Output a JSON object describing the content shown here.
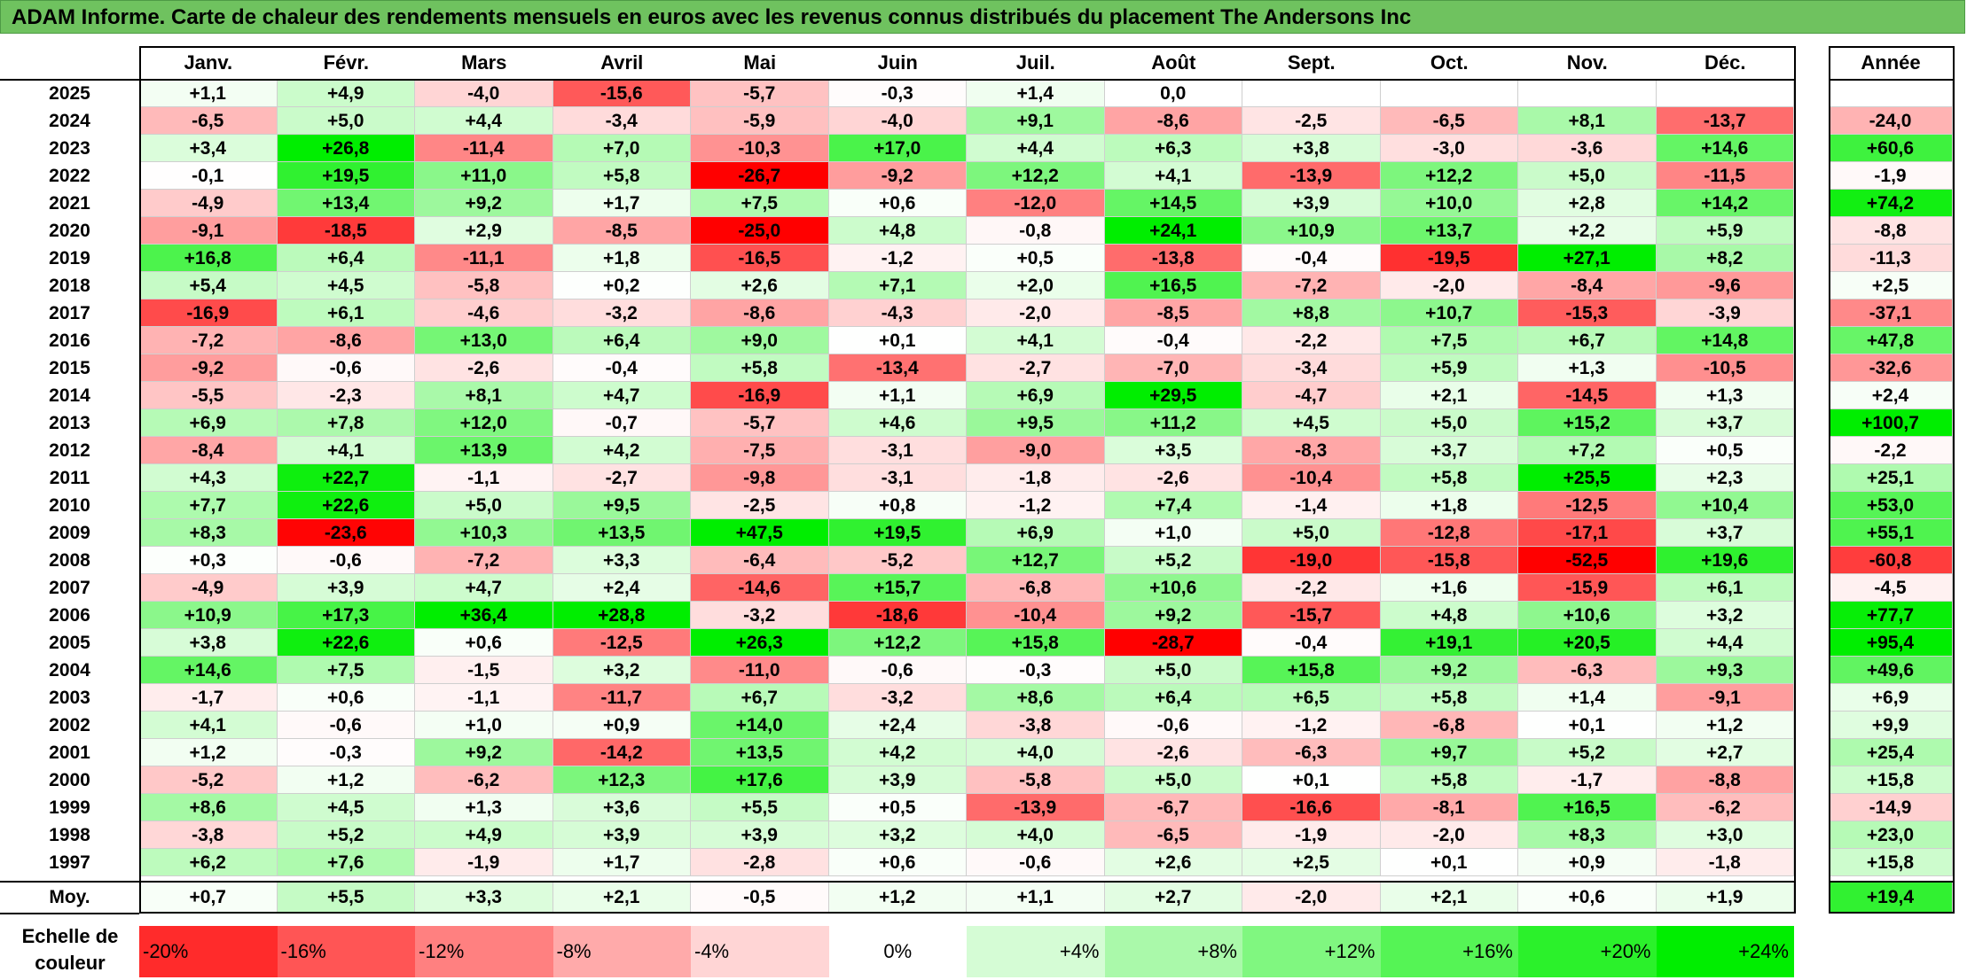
{
  "title": "ADAM Informe. Carte de chaleur des rendements mensuels en euros avec les revenus connus distribués du placement The Andersons Inc",
  "chart_data": {
    "type": "heatmap",
    "months": [
      "Janv.",
      "Févr.",
      "Mars",
      "Avril",
      "Mai",
      "Juin",
      "Juil.",
      "Août",
      "Sept.",
      "Oct.",
      "Nov.",
      "Déc."
    ],
    "year_header": "Année",
    "rows": [
      {
        "year": "2025",
        "values": [
          "+1,1",
          "+4,9",
          "-4,0",
          "-15,6",
          "-5,7",
          "-0,3",
          "+1,4",
          "0,0",
          "",
          "",
          "",
          ""
        ],
        "annual": ""
      },
      {
        "year": "2024",
        "values": [
          "-6,5",
          "+5,0",
          "+4,4",
          "-3,4",
          "-5,9",
          "-4,0",
          "+9,1",
          "-8,6",
          "-2,5",
          "-6,5",
          "+8,1",
          "-13,7"
        ],
        "annual": "-24,0"
      },
      {
        "year": "2023",
        "values": [
          "+3,4",
          "+26,8",
          "-11,4",
          "+7,0",
          "-10,3",
          "+17,0",
          "+4,4",
          "+6,3",
          "+3,8",
          "-3,0",
          "-3,6",
          "+14,6"
        ],
        "annual": "+60,6"
      },
      {
        "year": "2022",
        "values": [
          "-0,1",
          "+19,5",
          "+11,0",
          "+5,8",
          "-26,7",
          "-9,2",
          "+12,2",
          "+4,1",
          "-13,9",
          "+12,2",
          "+5,0",
          "-11,5"
        ],
        "annual": "-1,9"
      },
      {
        "year": "2021",
        "values": [
          "-4,9",
          "+13,4",
          "+9,2",
          "+1,7",
          "+7,5",
          "+0,6",
          "-12,0",
          "+14,5",
          "+3,9",
          "+10,0",
          "+2,8",
          "+14,2"
        ],
        "annual": "+74,2"
      },
      {
        "year": "2020",
        "values": [
          "-9,1",
          "-18,5",
          "+2,9",
          "-8,5",
          "-25,0",
          "+4,8",
          "-0,8",
          "+24,1",
          "+10,9",
          "+13,7",
          "+2,2",
          "+5,9"
        ],
        "annual": "-8,8"
      },
      {
        "year": "2019",
        "values": [
          "+16,8",
          "+6,4",
          "-11,1",
          "+1,8",
          "-16,5",
          "-1,2",
          "+0,5",
          "-13,8",
          "-0,4",
          "-19,5",
          "+27,1",
          "+8,2"
        ],
        "annual": "-11,3"
      },
      {
        "year": "2018",
        "values": [
          "+5,4",
          "+4,5",
          "-5,8",
          "+0,2",
          "+2,6",
          "+7,1",
          "+2,0",
          "+16,5",
          "-7,2",
          "-2,0",
          "-8,4",
          "-9,6"
        ],
        "annual": "+2,5"
      },
      {
        "year": "2017",
        "values": [
          "-16,9",
          "+6,1",
          "-4,6",
          "-3,2",
          "-8,6",
          "-4,3",
          "-2,0",
          "-8,5",
          "+8,8",
          "+10,7",
          "-15,3",
          "-3,9"
        ],
        "annual": "-37,1"
      },
      {
        "year": "2016",
        "values": [
          "-7,2",
          "-8,6",
          "+13,0",
          "+6,4",
          "+9,0",
          "+0,1",
          "+4,1",
          "-0,4",
          "-2,2",
          "+7,5",
          "+6,7",
          "+14,8"
        ],
        "annual": "+47,8"
      },
      {
        "year": "2015",
        "values": [
          "-9,2",
          "-0,6",
          "-2,6",
          "-0,4",
          "+5,8",
          "-13,4",
          "-2,7",
          "-7,0",
          "-3,4",
          "+5,9",
          "+1,3",
          "-10,5"
        ],
        "annual": "-32,6"
      },
      {
        "year": "2014",
        "values": [
          "-5,5",
          "-2,3",
          "+8,1",
          "+4,7",
          "-16,9",
          "+1,1",
          "+6,9",
          "+29,5",
          "-4,7",
          "+2,1",
          "-14,5",
          "+1,3"
        ],
        "annual": "+2,4"
      },
      {
        "year": "2013",
        "values": [
          "+6,9",
          "+7,8",
          "+12,0",
          "-0,7",
          "-5,7",
          "+4,6",
          "+9,5",
          "+11,2",
          "+4,5",
          "+5,0",
          "+15,2",
          "+3,7"
        ],
        "annual": "+100,7"
      },
      {
        "year": "2012",
        "values": [
          "-8,4",
          "+4,1",
          "+13,9",
          "+4,2",
          "-7,5",
          "-3,1",
          "-9,0",
          "+3,5",
          "-8,3",
          "+3,7",
          "+7,2",
          "+0,5"
        ],
        "annual": "-2,2"
      },
      {
        "year": "2011",
        "values": [
          "+4,3",
          "+22,7",
          "-1,1",
          "-2,7",
          "-9,8",
          "-3,1",
          "-1,8",
          "-2,6",
          "-10,4",
          "+5,8",
          "+25,5",
          "+2,3"
        ],
        "annual": "+25,1"
      },
      {
        "year": "2010",
        "values": [
          "+7,7",
          "+22,6",
          "+5,0",
          "+9,5",
          "-2,5",
          "+0,8",
          "-1,2",
          "+7,4",
          "-1,4",
          "+1,8",
          "-12,5",
          "+10,4"
        ],
        "annual": "+53,0"
      },
      {
        "year": "2009",
        "values": [
          "+8,3",
          "-23,6",
          "+10,3",
          "+13,5",
          "+47,5",
          "+19,5",
          "+6,9",
          "+1,0",
          "+5,0",
          "-12,8",
          "-17,1",
          "+3,7"
        ],
        "annual": "+55,1"
      },
      {
        "year": "2008",
        "values": [
          "+0,3",
          "-0,6",
          "-7,2",
          "+3,3",
          "-6,4",
          "-5,2",
          "+12,7",
          "+5,2",
          "-19,0",
          "-15,8",
          "-52,5",
          "+19,6"
        ],
        "annual": "-60,8"
      },
      {
        "year": "2007",
        "values": [
          "-4,9",
          "+3,9",
          "+4,7",
          "+2,4",
          "-14,6",
          "+15,7",
          "-6,8",
          "+10,6",
          "-2,2",
          "+1,6",
          "-15,9",
          "+6,1"
        ],
        "annual": "-4,5"
      },
      {
        "year": "2006",
        "values": [
          "+10,9",
          "+17,3",
          "+36,4",
          "+28,8",
          "-3,2",
          "-18,6",
          "-10,4",
          "+9,2",
          "-15,7",
          "+4,8",
          "+10,6",
          "+3,2"
        ],
        "annual": "+77,7"
      },
      {
        "year": "2005",
        "values": [
          "+3,8",
          "+22,6",
          "+0,6",
          "-12,5",
          "+26,3",
          "+12,2",
          "+15,8",
          "-28,7",
          "-0,4",
          "+19,1",
          "+20,5",
          "+4,4"
        ],
        "annual": "+95,4"
      },
      {
        "year": "2004",
        "values": [
          "+14,6",
          "+7,5",
          "-1,5",
          "+3,2",
          "-11,0",
          "-0,6",
          "-0,3",
          "+5,0",
          "+15,8",
          "+9,2",
          "-6,3",
          "+9,3"
        ],
        "annual": "+49,6"
      },
      {
        "year": "2003",
        "values": [
          "-1,7",
          "+0,6",
          "-1,1",
          "-11,7",
          "+6,7",
          "-3,2",
          "+8,6",
          "+6,4",
          "+6,5",
          "+5,8",
          "+1,4",
          "-9,1"
        ],
        "annual": "+6,9"
      },
      {
        "year": "2002",
        "values": [
          "+4,1",
          "-0,6",
          "+1,0",
          "+0,9",
          "+14,0",
          "+2,4",
          "-3,8",
          "-0,6",
          "-1,2",
          "-6,8",
          "+0,1",
          "+1,2"
        ],
        "annual": "+9,9"
      },
      {
        "year": "2001",
        "values": [
          "+1,2",
          "-0,3",
          "+9,2",
          "-14,2",
          "+13,5",
          "+4,2",
          "+4,0",
          "-2,6",
          "-6,3",
          "+9,7",
          "+5,2",
          "+2,7"
        ],
        "annual": "+25,4"
      },
      {
        "year": "2000",
        "values": [
          "-5,2",
          "+1,2",
          "-6,2",
          "+12,3",
          "+17,6",
          "+3,9",
          "-5,8",
          "+5,0",
          "+0,1",
          "+5,8",
          "-1,7",
          "-8,8"
        ],
        "annual": "+15,8"
      },
      {
        "year": "1999",
        "values": [
          "+8,6",
          "+4,5",
          "+1,3",
          "+3,6",
          "+5,5",
          "+0,5",
          "-13,9",
          "-6,7",
          "-16,6",
          "-8,1",
          "+16,5",
          "-6,2"
        ],
        "annual": "-14,9"
      },
      {
        "year": "1998",
        "values": [
          "-3,8",
          "+5,2",
          "+4,9",
          "+3,9",
          "+3,9",
          "+3,2",
          "+4,0",
          "-6,5",
          "-1,9",
          "-2,0",
          "+8,3",
          "+3,0"
        ],
        "annual": "+23,0"
      },
      {
        "year": "1997",
        "values": [
          "+6,2",
          "+7,6",
          "-1,9",
          "+1,7",
          "-2,8",
          "+0,6",
          "-0,6",
          "+2,6",
          "+2,5",
          "+0,1",
          "+0,9",
          "-1,8"
        ],
        "annual": "+15,8"
      }
    ],
    "average": {
      "label": "Moy.",
      "values": [
        "+0,7",
        "+5,5",
        "+3,3",
        "+2,1",
        "-0,5",
        "+1,2",
        "+1,1",
        "+2,7",
        "-2,0",
        "+2,1",
        "+0,6",
        "+1,9"
      ],
      "annual": "+19,4"
    },
    "scale": {
      "label": "Echelle de couleur",
      "steps": [
        "-20%",
        "-16%",
        "-12%",
        "-8%",
        "-4%",
        "0%",
        "+4%",
        "+8%",
        "+12%",
        "+16%",
        "+20%",
        "+24%"
      ],
      "step_values": [
        -20,
        -16,
        -12,
        -8,
        -4,
        0,
        4,
        8,
        12,
        16,
        20,
        24
      ]
    },
    "colors": {
      "negative": "#ff0000",
      "neutral": "#ffffff",
      "positive": "#00ee00",
      "title_bar": "#6fc25f"
    }
  }
}
